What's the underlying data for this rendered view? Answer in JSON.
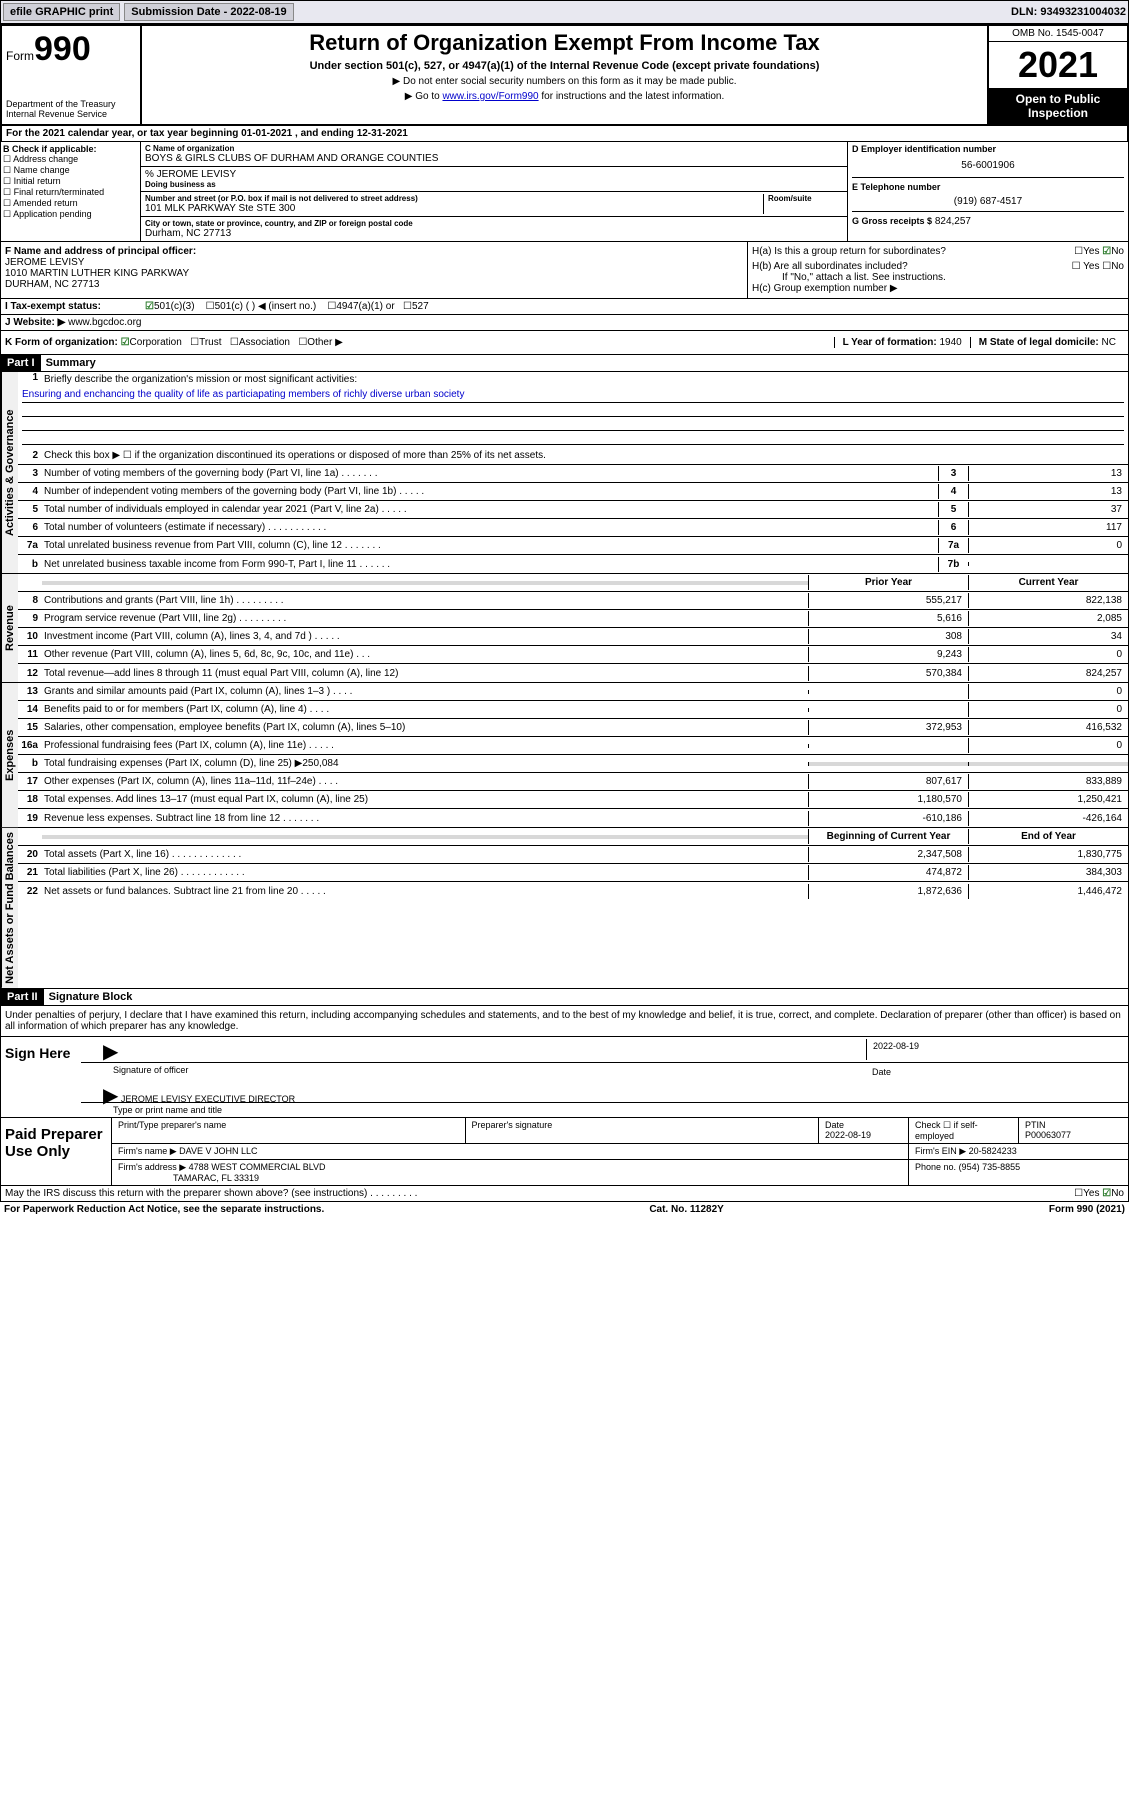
{
  "header": {
    "efile": "efile GRAPHIC print",
    "sub_date_label": "Submission Date - ",
    "sub_date": "2022-08-19",
    "dln": "DLN: 93493231004032"
  },
  "top": {
    "form_prefix": "Form",
    "form_num": "990",
    "dept": "Department of the Treasury\nInternal Revenue Service",
    "title": "Return of Organization Exempt From Income Tax",
    "subtitle": "Under section 501(c), 527, or 4947(a)(1) of the Internal Revenue Code (except private foundations)",
    "note1": "▶ Do not enter social security numbers on this form as it may be made public.",
    "note2": "▶ Go to www.irs.gov/Form990 for instructions and the latest information.",
    "link": "www.irs.gov/Form990",
    "omb": "OMB No. 1545-0047",
    "year": "2021",
    "inspect": "Open to Public Inspection"
  },
  "period": {
    "a_label": "A",
    "text": "For the 2021 calendar year, or tax year beginning 01-01-2021    , and ending 12-31-2021"
  },
  "b": {
    "title": "B Check if applicable:",
    "opts": [
      "Address change",
      "Name change",
      "Initial return",
      "Final return/terminated",
      "Amended return",
      "Application pending"
    ]
  },
  "c": {
    "name_label": "C Name of organization",
    "name": "BOYS & GIRLS CLUBS OF DURHAM AND ORANGE COUNTIES",
    "care_of": "% JEROME LEVISY",
    "dba_label": "Doing business as",
    "addr_label": "Number and street (or P.O. box if mail is not delivered to street address)",
    "room_label": "Room/suite",
    "addr": "101 MLK PARKWAY Ste STE 300",
    "city_label": "City or town, state or province, country, and ZIP or foreign postal code",
    "city": "Durham, NC  27713"
  },
  "d": {
    "ein_label": "D Employer identification number",
    "ein": "56-6001906",
    "phone_label": "E Telephone number",
    "phone": "(919) 687-4517",
    "gross_label": "G Gross receipts $",
    "gross": "824,257"
  },
  "f": {
    "label": "F  Name and address of principal officer:",
    "name": "JEROME LEVISY",
    "addr1": "1010 MARTIN LUTHER KING PARKWAY",
    "addr2": "DURHAM, NC  27713"
  },
  "h": {
    "a_label": "H(a)  Is this a group return for subordinates?",
    "a_yes": "Yes",
    "a_no": "No",
    "b_label": "H(b)  Are all subordinates included?",
    "b_note": "If \"No,\" attach a list. See instructions.",
    "c_label": "H(c)  Group exemption number ▶"
  },
  "i": {
    "label": "I    Tax-exempt status:",
    "opts": [
      "501(c)(3)",
      "501(c) (  ) ◀ (insert no.)",
      "4947(a)(1) or",
      "527"
    ]
  },
  "j": {
    "label": "J   Website: ▶",
    "val": "www.bgcdoc.org"
  },
  "k": {
    "label": "K Form of organization:",
    "opts": [
      "Corporation",
      "Trust",
      "Association",
      "Other ▶"
    ],
    "l_label": "L Year of formation:",
    "l_val": "1940",
    "m_label": "M State of legal domicile:",
    "m_val": "NC"
  },
  "part1": {
    "header": "Part I",
    "title": "Summary",
    "sections": [
      {
        "vert": "Activities & Governance",
        "lines": [
          {
            "num": "1",
            "text": "Briefly describe the organization's mission or most significant activities:",
            "mission": "Ensuring and enchancing the quality of life as particiapating members of richly diverse urban society"
          },
          {
            "num": "2",
            "text": "Check this box ▶ ☐  if the organization discontinued its operations or disposed of more than 25% of its net assets."
          },
          {
            "num": "3",
            "text": "Number of voting members of the governing body (Part VI, line 1a)  .    .    .    .    .    .    .",
            "box": "3",
            "val": "13"
          },
          {
            "num": "4",
            "text": "Number of independent voting members of the governing body (Part VI, line 1b)  .    .    .    .    .",
            "box": "4",
            "val": "13"
          },
          {
            "num": "5",
            "text": "Total number of individuals employed in calendar year 2021 (Part V, line 2a)  .    .    .    .    .",
            "box": "5",
            "val": "37"
          },
          {
            "num": "6",
            "text": "Total number of volunteers (estimate if necessary)  .    .    .    .    .    .    .    .    .    .    .",
            "box": "6",
            "val": "117"
          },
          {
            "num": "7a",
            "text": "Total unrelated business revenue from Part VIII, column (C), line 12  .    .    .    .    .    .    .",
            "box": "7a",
            "val": "0"
          },
          {
            "num": "b",
            "text": "Net unrelated business taxable income from Form 990-T, Part I, line 11  .    .    .    .    .    .",
            "box": "7b",
            "val": ""
          }
        ]
      },
      {
        "vert": "Revenue",
        "hdr_prior": "Prior Year",
        "hdr_cur": "Current Year",
        "lines": [
          {
            "num": "8",
            "text": "Contributions and grants (Part VIII, line 1h)  .    .    .    .    .    .    .    .    .",
            "prior": "555,217",
            "cur": "822,138"
          },
          {
            "num": "9",
            "text": "Program service revenue (Part VIII, line 2g)  .    .    .    .    .    .    .    .    .",
            "prior": "5,616",
            "cur": "2,085"
          },
          {
            "num": "10",
            "text": "Investment income (Part VIII, column (A), lines 3, 4, and 7d )  .    .    .    .    .",
            "prior": "308",
            "cur": "34"
          },
          {
            "num": "11",
            "text": "Other revenue (Part VIII, column (A), lines 5, 6d, 8c, 9c, 10c, and 11e)  .    .    .",
            "prior": "9,243",
            "cur": "0"
          },
          {
            "num": "12",
            "text": "Total revenue—add lines 8 through 11 (must equal Part VIII, column (A), line 12)",
            "prior": "570,384",
            "cur": "824,257"
          }
        ]
      },
      {
        "vert": "Expenses",
        "lines": [
          {
            "num": "13",
            "text": "Grants and similar amounts paid (Part IX, column (A), lines 1–3 )  .    .    .    .",
            "prior": "",
            "cur": "0"
          },
          {
            "num": "14",
            "text": "Benefits paid to or for members (Part IX, column (A), line 4)  .    .    .    .",
            "prior": "",
            "cur": "0"
          },
          {
            "num": "15",
            "text": "Salaries, other compensation, employee benefits (Part IX, column (A), lines 5–10)",
            "prior": "372,953",
            "cur": "416,532"
          },
          {
            "num": "16a",
            "text": "Professional fundraising fees (Part IX, column (A), line 11e)  .    .    .    .    .",
            "prior": "",
            "cur": "0"
          },
          {
            "num": "b",
            "text": "Total fundraising expenses (Part IX, column (D), line 25) ▶250,084",
            "shade": true
          },
          {
            "num": "17",
            "text": "Other expenses (Part IX, column (A), lines 11a–11d, 11f–24e)  .    .    .    .",
            "prior": "807,617",
            "cur": "833,889"
          },
          {
            "num": "18",
            "text": "Total expenses. Add lines 13–17 (must equal Part IX, column (A), line 25)",
            "prior": "1,180,570",
            "cur": "1,250,421"
          },
          {
            "num": "19",
            "text": "Revenue less expenses. Subtract line 18 from line 12  .    .    .    .    .    .    .",
            "prior": "-610,186",
            "cur": "-426,164"
          }
        ]
      },
      {
        "vert": "Net Assets or Fund Balances",
        "hdr_prior": "Beginning of Current Year",
        "hdr_cur": "End of Year",
        "lines": [
          {
            "num": "20",
            "text": "Total assets (Part X, line 16)  .    .    .    .    .    .    .    .    .    .    .    .    .",
            "prior": "2,347,508",
            "cur": "1,830,775"
          },
          {
            "num": "21",
            "text": "Total liabilities (Part X, line 26)  .    .    .    .    .    .    .    .    .    .    .    .",
            "prior": "474,872",
            "cur": "384,303"
          },
          {
            "num": "22",
            "text": "Net assets or fund balances. Subtract line 21 from line 20  .    .    .    .    .",
            "prior": "1,872,636",
            "cur": "1,446,472"
          }
        ]
      }
    ]
  },
  "part2": {
    "header": "Part II",
    "title": "Signature Block",
    "decl": "Under penalties of perjury, I declare that I have examined this return, including accompanying schedules and statements, and to the best of my knowledge and belief, it is true, correct, and complete. Declaration of preparer (other than officer) is based on all information of which preparer has any knowledge.",
    "sign_here": "Sign Here",
    "sig_officer": "Signature of officer",
    "sig_date": "2022-08-19",
    "sig_date_label": "Date",
    "officer_name": "JEROME LEVISY EXECUTIVE DIRECTOR",
    "officer_name_label": "Type or print name and title",
    "paid": "Paid Preparer Use Only",
    "prep_name": "Print/Type preparer's name",
    "prep_sig": "Preparer's signature",
    "prep_date_label": "Date",
    "prep_date": "2022-08-19",
    "prep_check": "Check ☐ if self-employed",
    "ptin_label": "PTIN",
    "ptin": "P00063077",
    "firm_name_label": "Firm's name    ▶",
    "firm_name": "DAVE V JOHN LLC",
    "firm_ein_label": "Firm's EIN ▶",
    "firm_ein": "20-5824233",
    "firm_addr_label": "Firm's address ▶",
    "firm_addr1": "4788 WEST COMMERCIAL BLVD",
    "firm_addr2": "TAMARAC, FL  33319",
    "firm_phone_label": "Phone no.",
    "firm_phone": "(954) 735-8855",
    "discuss": "May the IRS discuss this return with the preparer shown above? (see instructions)  .    .    .    .    .    .    .    .    .",
    "discuss_yes": "Yes",
    "discuss_no": "No"
  },
  "footer": {
    "left": "For Paperwork Reduction Act Notice, see the separate instructions.",
    "mid": "Cat. No. 11282Y",
    "right": "Form 990 (2021)"
  },
  "colors": {
    "link": "#0000cc",
    "check_green": "#2a7a2a",
    "shade": "#d8d8d8"
  }
}
